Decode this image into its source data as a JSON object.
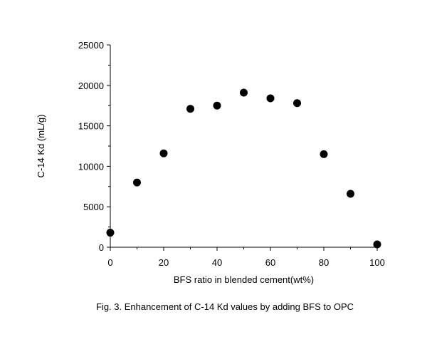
{
  "chart_data": {
    "type": "scatter",
    "title": "",
    "xlabel": "BFS ratio in blended cement(wt%)",
    "ylabel": "C-14 Kd (mL/g)",
    "xlim": [
      0,
      100
    ],
    "ylim": [
      0,
      25000
    ],
    "x_ticks": [
      0,
      20,
      40,
      60,
      80,
      100
    ],
    "x_tick_labels": [
      "0",
      "20",
      "40",
      "60",
      "80",
      "100"
    ],
    "y_ticks": [
      0,
      5000,
      10000,
      15000,
      20000,
      25000
    ],
    "y_tick_labels": [
      "0",
      "5000",
      "10000",
      "15000",
      "20000",
      "25000"
    ],
    "grid": false,
    "legend": "none",
    "marker_color": "#000000",
    "series": [
      {
        "x": [
          0,
          10,
          20,
          30,
          40,
          50,
          60,
          70,
          80,
          90,
          100
        ],
        "y": [
          1800,
          8000,
          11600,
          17100,
          17500,
          19100,
          18400,
          17800,
          11500,
          6600,
          350
        ]
      }
    ]
  },
  "caption": "Fig. 3.  Enhancement of C-14 Kd values by adding BFS to OPC"
}
